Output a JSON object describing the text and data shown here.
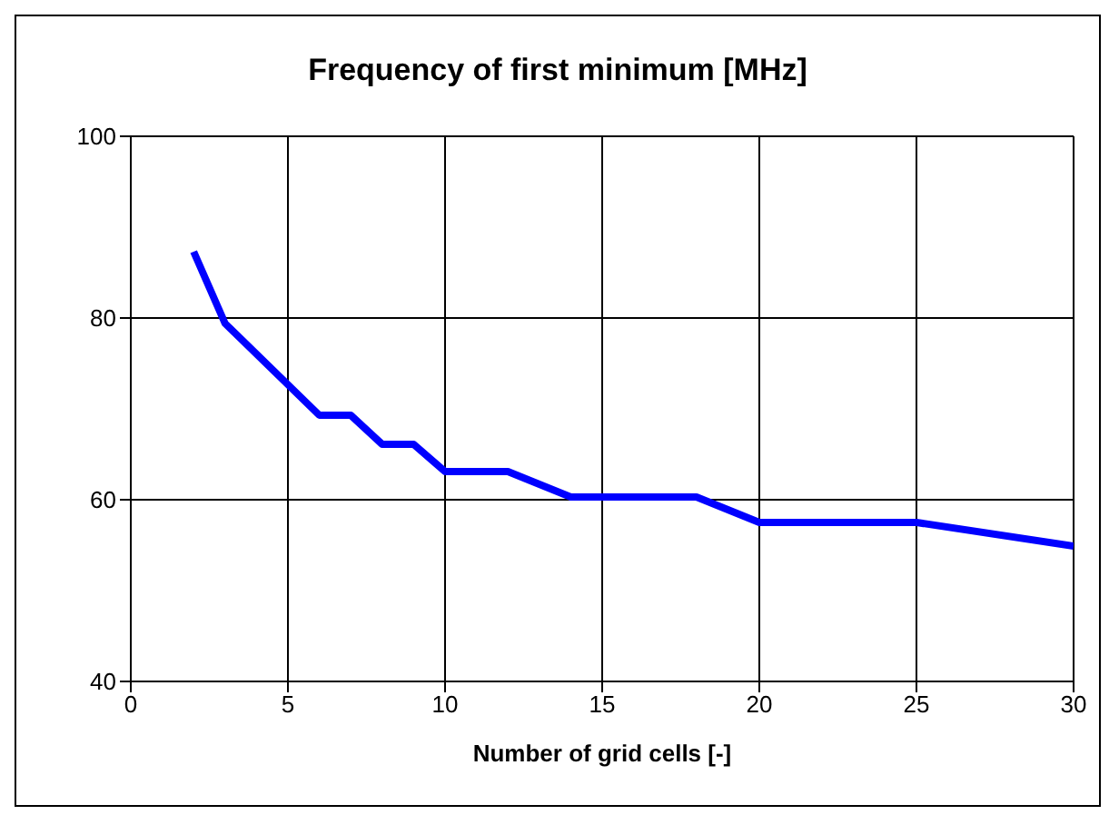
{
  "chart_data": {
    "type": "line",
    "title": "Frequency of first minimum [MHz]",
    "xlabel": "Number of grid cells [-]",
    "x": [
      2,
      3,
      6,
      7,
      8,
      9,
      10,
      12,
      14,
      18,
      20,
      25,
      30
    ],
    "series": [
      {
        "color": "#0000ff",
        "values": [
          87.3,
          79.4,
          69.3,
          69.3,
          66.1,
          66.1,
          63.1,
          63.1,
          60.3,
          60.3,
          57.5,
          57.5,
          54.9
        ]
      }
    ],
    "xlim": [
      0,
      30
    ],
    "xticks": [
      0,
      5,
      10,
      15,
      20,
      25,
      30
    ],
    "ylim": [
      40,
      100
    ],
    "yticks": [
      40,
      60,
      80,
      100
    ],
    "grid": true,
    "legend": false,
    "marker": "none",
    "line_style": "solid"
  }
}
